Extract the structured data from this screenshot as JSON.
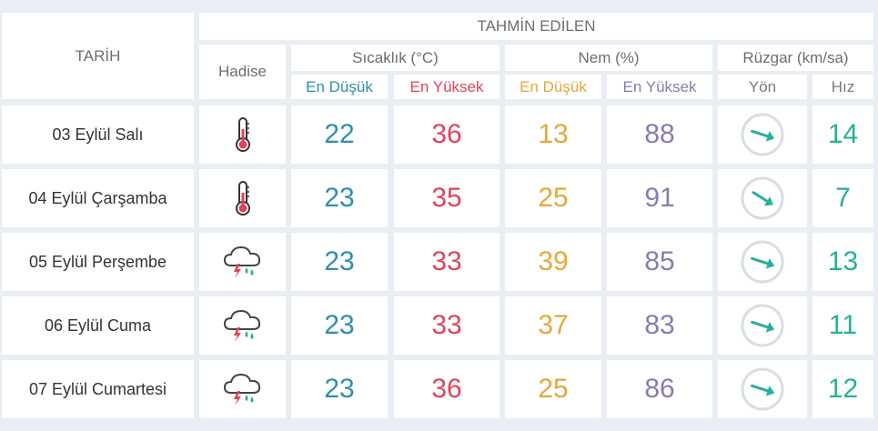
{
  "header": {
    "forecast": "TAHMİN EDİLEN",
    "date": "TARİH",
    "event": "Hadise",
    "temperature": "Sıcaklık (°C)",
    "humidity": "Nem (%)",
    "wind": "Rüzgar (km/sa)",
    "temp_min": "En Düşük",
    "temp_max": "En Yüksek",
    "hum_min": "En Düşük",
    "hum_max": "En Yüksek",
    "direction": "Yön",
    "speed": "Hız"
  },
  "colors": {
    "temp_min": "#2e8fa8",
    "temp_max": "#e0445a",
    "hum_min": "#e6a73a",
    "hum_max": "#8a7bb1",
    "speed": "#26b09a",
    "arrow": "#26b09a"
  },
  "rows": [
    {
      "date": "03 Eylül Salı",
      "event_icon": "thermometer-icon",
      "temp_min": "22",
      "temp_max": "36",
      "hum_min": "13",
      "hum_max": "88",
      "wind_dir_icon": "wind-arrow-east-southeast-icon",
      "wind_speed": "14"
    },
    {
      "date": "04 Eylül Çarşamba",
      "event_icon": "thermometer-icon",
      "temp_min": "23",
      "temp_max": "35",
      "hum_min": "25",
      "hum_max": "91",
      "wind_dir_icon": "wind-arrow-southeast-icon",
      "wind_speed": "7"
    },
    {
      "date": "05 Eylül Perşembe",
      "event_icon": "thunderstorm-rain-icon",
      "temp_min": "23",
      "temp_max": "33",
      "hum_min": "39",
      "hum_max": "85",
      "wind_dir_icon": "wind-arrow-east-southeast-icon",
      "wind_speed": "13"
    },
    {
      "date": "06 Eylül Cuma",
      "event_icon": "thunderstorm-rain-icon",
      "temp_min": "23",
      "temp_max": "33",
      "hum_min": "37",
      "hum_max": "83",
      "wind_dir_icon": "wind-arrow-east-southeast-icon",
      "wind_speed": "11"
    },
    {
      "date": "07 Eylül Cumartesi",
      "event_icon": "thunderstorm-rain-icon",
      "temp_min": "23",
      "temp_max": "36",
      "hum_min": "25",
      "hum_max": "86",
      "wind_dir_icon": "wind-arrow-east-southeast-icon",
      "wind_speed": "12"
    }
  ]
}
